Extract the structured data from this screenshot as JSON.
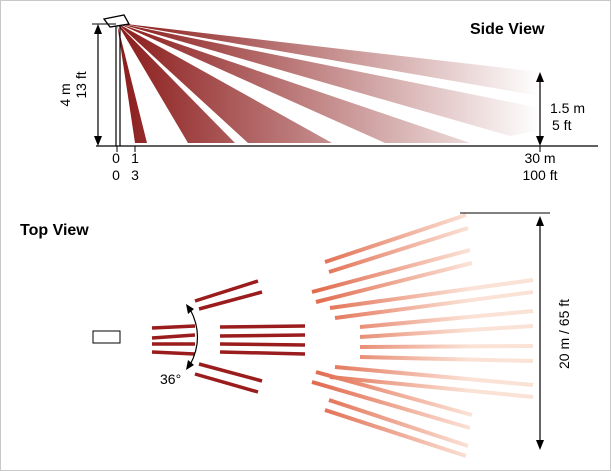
{
  "side_view": {
    "title": "Side View",
    "height_m": "4 m",
    "height_ft": "13 ft",
    "target_m": "1.5 m",
    "target_ft": "5 ft",
    "axis_top": [
      "0",
      "1",
      "30 m"
    ],
    "axis_bottom": [
      "0",
      "3",
      "100 ft"
    ],
    "beam_color_dark": "#8b1a1a",
    "beam_color_light": "#ffffff"
  },
  "top_view": {
    "title": "Top View",
    "angle": "36°",
    "width_label": "20 m / 65 ft",
    "near_beam_color": "#9b1c1c",
    "far_beam_color": "#e87a5a"
  }
}
